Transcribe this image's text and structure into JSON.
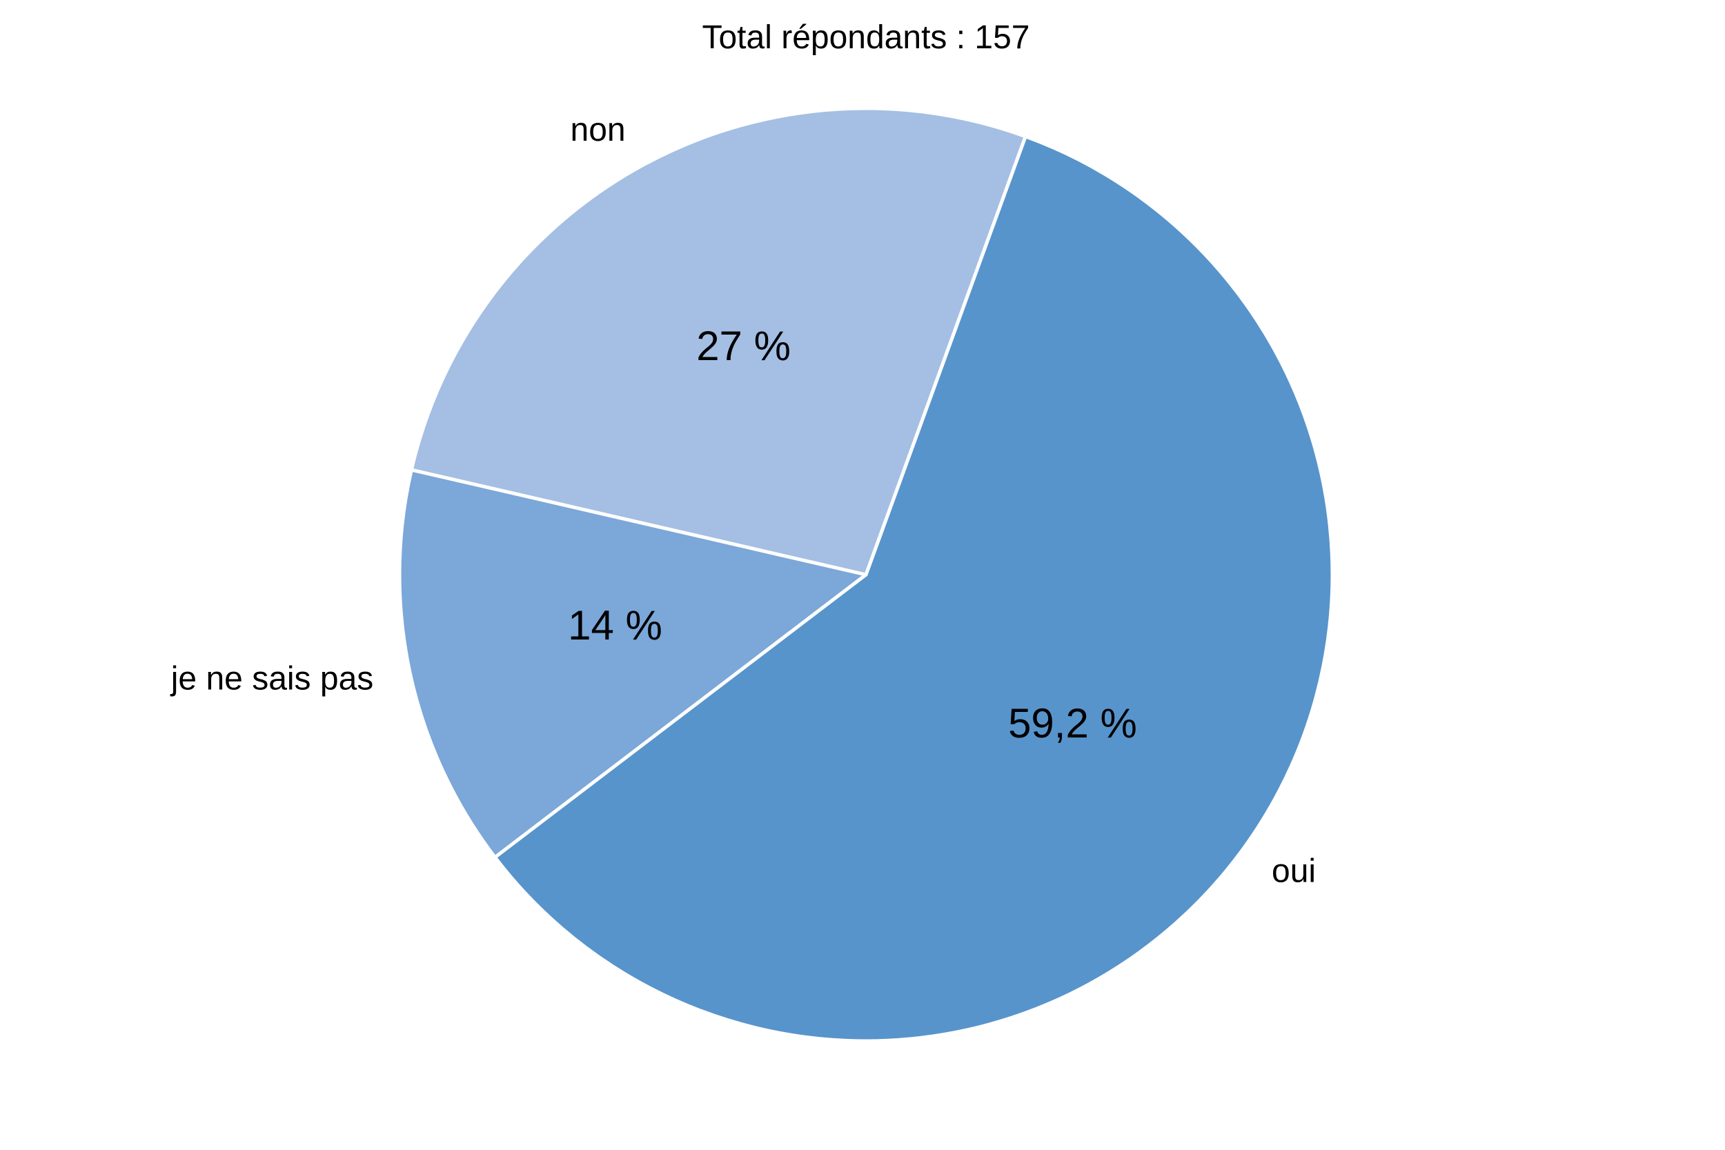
{
  "chart_data": {
    "type": "pie",
    "title": "Total répondants : 157",
    "slices": [
      {
        "label": "oui",
        "value": 59.2,
        "value_label": "59,2 %",
        "color": "#5794CB"
      },
      {
        "label": "je ne sais pas",
        "value": 14,
        "value_label": "14 %",
        "color": "#7BA7D9"
      },
      {
        "label": "non",
        "value": 27,
        "value_label": "27 %",
        "color": "#A4BFE3"
      }
    ],
    "start_angle_deg": 70,
    "direction": "clockwise",
    "legend": "none",
    "slice_border_color": "#ffffff"
  }
}
